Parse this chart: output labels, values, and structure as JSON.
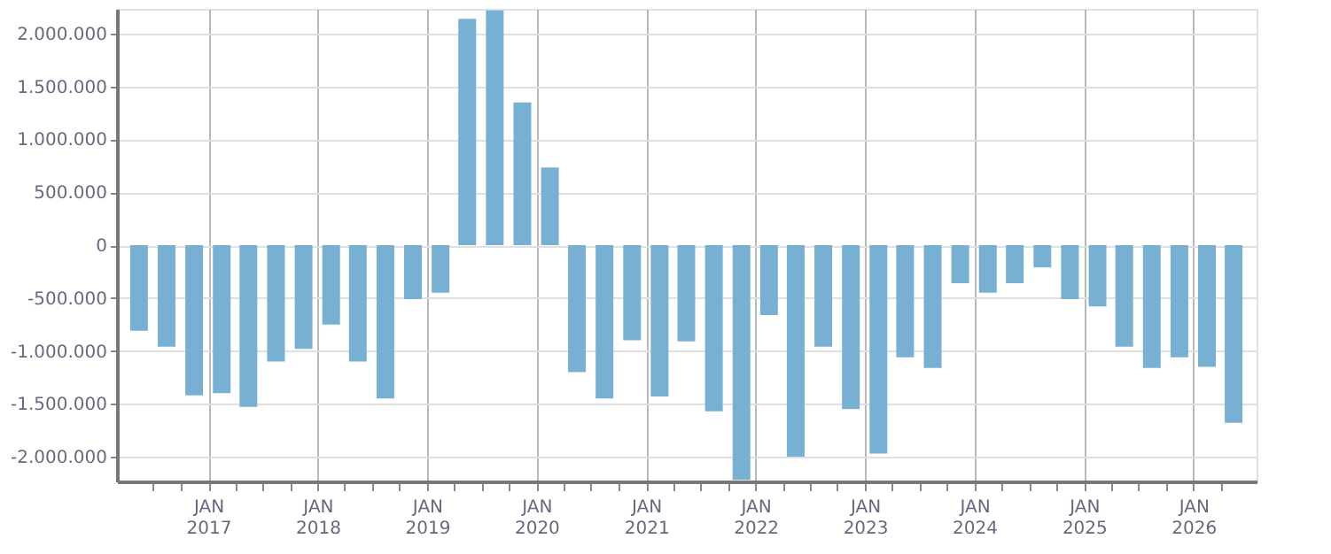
{
  "chart_data": {
    "type": "bar",
    "x": [
      "2016-05-15",
      "2016-08-15",
      "2016-11-15",
      "2017-02-15",
      "2017-05-15",
      "2017-08-15",
      "2017-11-15",
      "2018-02-15",
      "2018-05-15",
      "2018-08-15",
      "2018-11-15",
      "2019-02-15",
      "2019-05-15",
      "2019-08-15",
      "2019-11-15",
      "2020-02-15",
      "2020-05-15",
      "2020-08-15",
      "2020-11-15",
      "2021-02-15",
      "2021-05-15",
      "2021-08-15",
      "2021-11-15",
      "2022-02-15",
      "2022-05-15",
      "2022-08-15",
      "2022-11-15",
      "2023-02-15",
      "2023-05-15",
      "2023-08-15",
      "2023-11-15",
      "2024-02-15",
      "2024-05-15",
      "2024-08-15",
      "2024-11-15",
      "2025-02-15",
      "2025-05-15",
      "2025-08-15",
      "2025-11-15",
      "2026-02-15",
      "2026-05-15"
    ],
    "series": [
      {
        "color": "#78b0d3",
        "values": [
          -810000,
          -960000,
          -1420000,
          -1400000,
          -1530000,
          -1100000,
          -980000,
          -750000,
          -1100000,
          -1450000,
          -510000,
          -450000,
          2140000,
          2220000,
          1350000,
          735000,
          -1200000,
          -1450000,
          -900000,
          -1430000,
          -910000,
          -1570000,
          -2220000,
          -660000,
          -2000000,
          -960000,
          -1550000,
          -1970000,
          -1060000,
          -1160000,
          -360000,
          -450000,
          -360000,
          -210000,
          -510000,
          -580000,
          -960000,
          -1160000,
          -1060000,
          -1150000,
          -1680000
        ]
      }
    ],
    "xlim": [
      "2016-04-01",
      "2026-07-01"
    ],
    "xticks": [
      {
        "value": "2016-07-01",
        "label": null
      },
      {
        "value": "2016-10-01",
        "label": null
      },
      {
        "value": "2017-01-01",
        "label": "JAN 2017"
      },
      {
        "value": "2017-04-01",
        "label": null
      },
      {
        "value": "2017-07-01",
        "label": null
      },
      {
        "value": "2017-10-01",
        "label": null
      },
      {
        "value": "2018-01-01",
        "label": "JAN 2018"
      },
      {
        "value": "2018-04-01",
        "label": null
      },
      {
        "value": "2018-07-01",
        "label": null
      },
      {
        "value": "2018-10-01",
        "label": null
      },
      {
        "value": "2019-01-01",
        "label": "JAN 2019"
      },
      {
        "value": "2019-04-01",
        "label": null
      },
      {
        "value": "2019-07-01",
        "label": null
      },
      {
        "value": "2019-10-01",
        "label": null
      },
      {
        "value": "2020-01-01",
        "label": "JAN 2020"
      },
      {
        "value": "2020-04-01",
        "label": null
      },
      {
        "value": "2020-07-01",
        "label": null
      },
      {
        "value": "2020-10-01",
        "label": null
      },
      {
        "value": "2021-01-01",
        "label": "JAN 2021"
      },
      {
        "value": "2021-04-01",
        "label": null
      },
      {
        "value": "2021-07-01",
        "label": null
      },
      {
        "value": "2021-10-01",
        "label": null
      },
      {
        "value": "2022-01-01",
        "label": "JAN 2022"
      },
      {
        "value": "2022-04-01",
        "label": null
      },
      {
        "value": "2022-07-01",
        "label": null
      },
      {
        "value": "2022-10-01",
        "label": null
      },
      {
        "value": "2023-01-01",
        "label": "JAN 2023"
      },
      {
        "value": "2023-04-01",
        "label": null
      },
      {
        "value": "2023-07-01",
        "label": null
      },
      {
        "value": "2023-10-01",
        "label": null
      },
      {
        "value": "2024-01-01",
        "label": "JAN 2024"
      },
      {
        "value": "2024-04-01",
        "label": null
      },
      {
        "value": "2024-07-01",
        "label": null
      },
      {
        "value": "2024-10-01",
        "label": null
      },
      {
        "value": "2025-01-01",
        "label": "JAN 2025"
      },
      {
        "value": "2025-04-01",
        "label": null
      },
      {
        "value": "2025-07-01",
        "label": null
      },
      {
        "value": "2025-10-01",
        "label": null
      },
      {
        "value": "2026-01-01",
        "label": "JAN 2026"
      },
      {
        "value": "2026-04-01",
        "label": null
      }
    ],
    "ylim": [
      -2234000,
      2234000
    ],
    "yticks": [
      {
        "value": -2000000,
        "label": "-2.000.000"
      },
      {
        "value": -1500000,
        "label": "-1.500.000"
      },
      {
        "value": -1000000,
        "label": "-1.000.000"
      },
      {
        "value": -500000,
        "label": "-500.000"
      },
      {
        "value": 0,
        "label": "0"
      },
      {
        "value": 500000,
        "label": "500.000"
      },
      {
        "value": 1000000,
        "label": "1.000.000"
      },
      {
        "value": 1500000,
        "label": "1.500.000"
      },
      {
        "value": 2000000,
        "label": "2.000.000"
      }
    ],
    "grid": true
  }
}
